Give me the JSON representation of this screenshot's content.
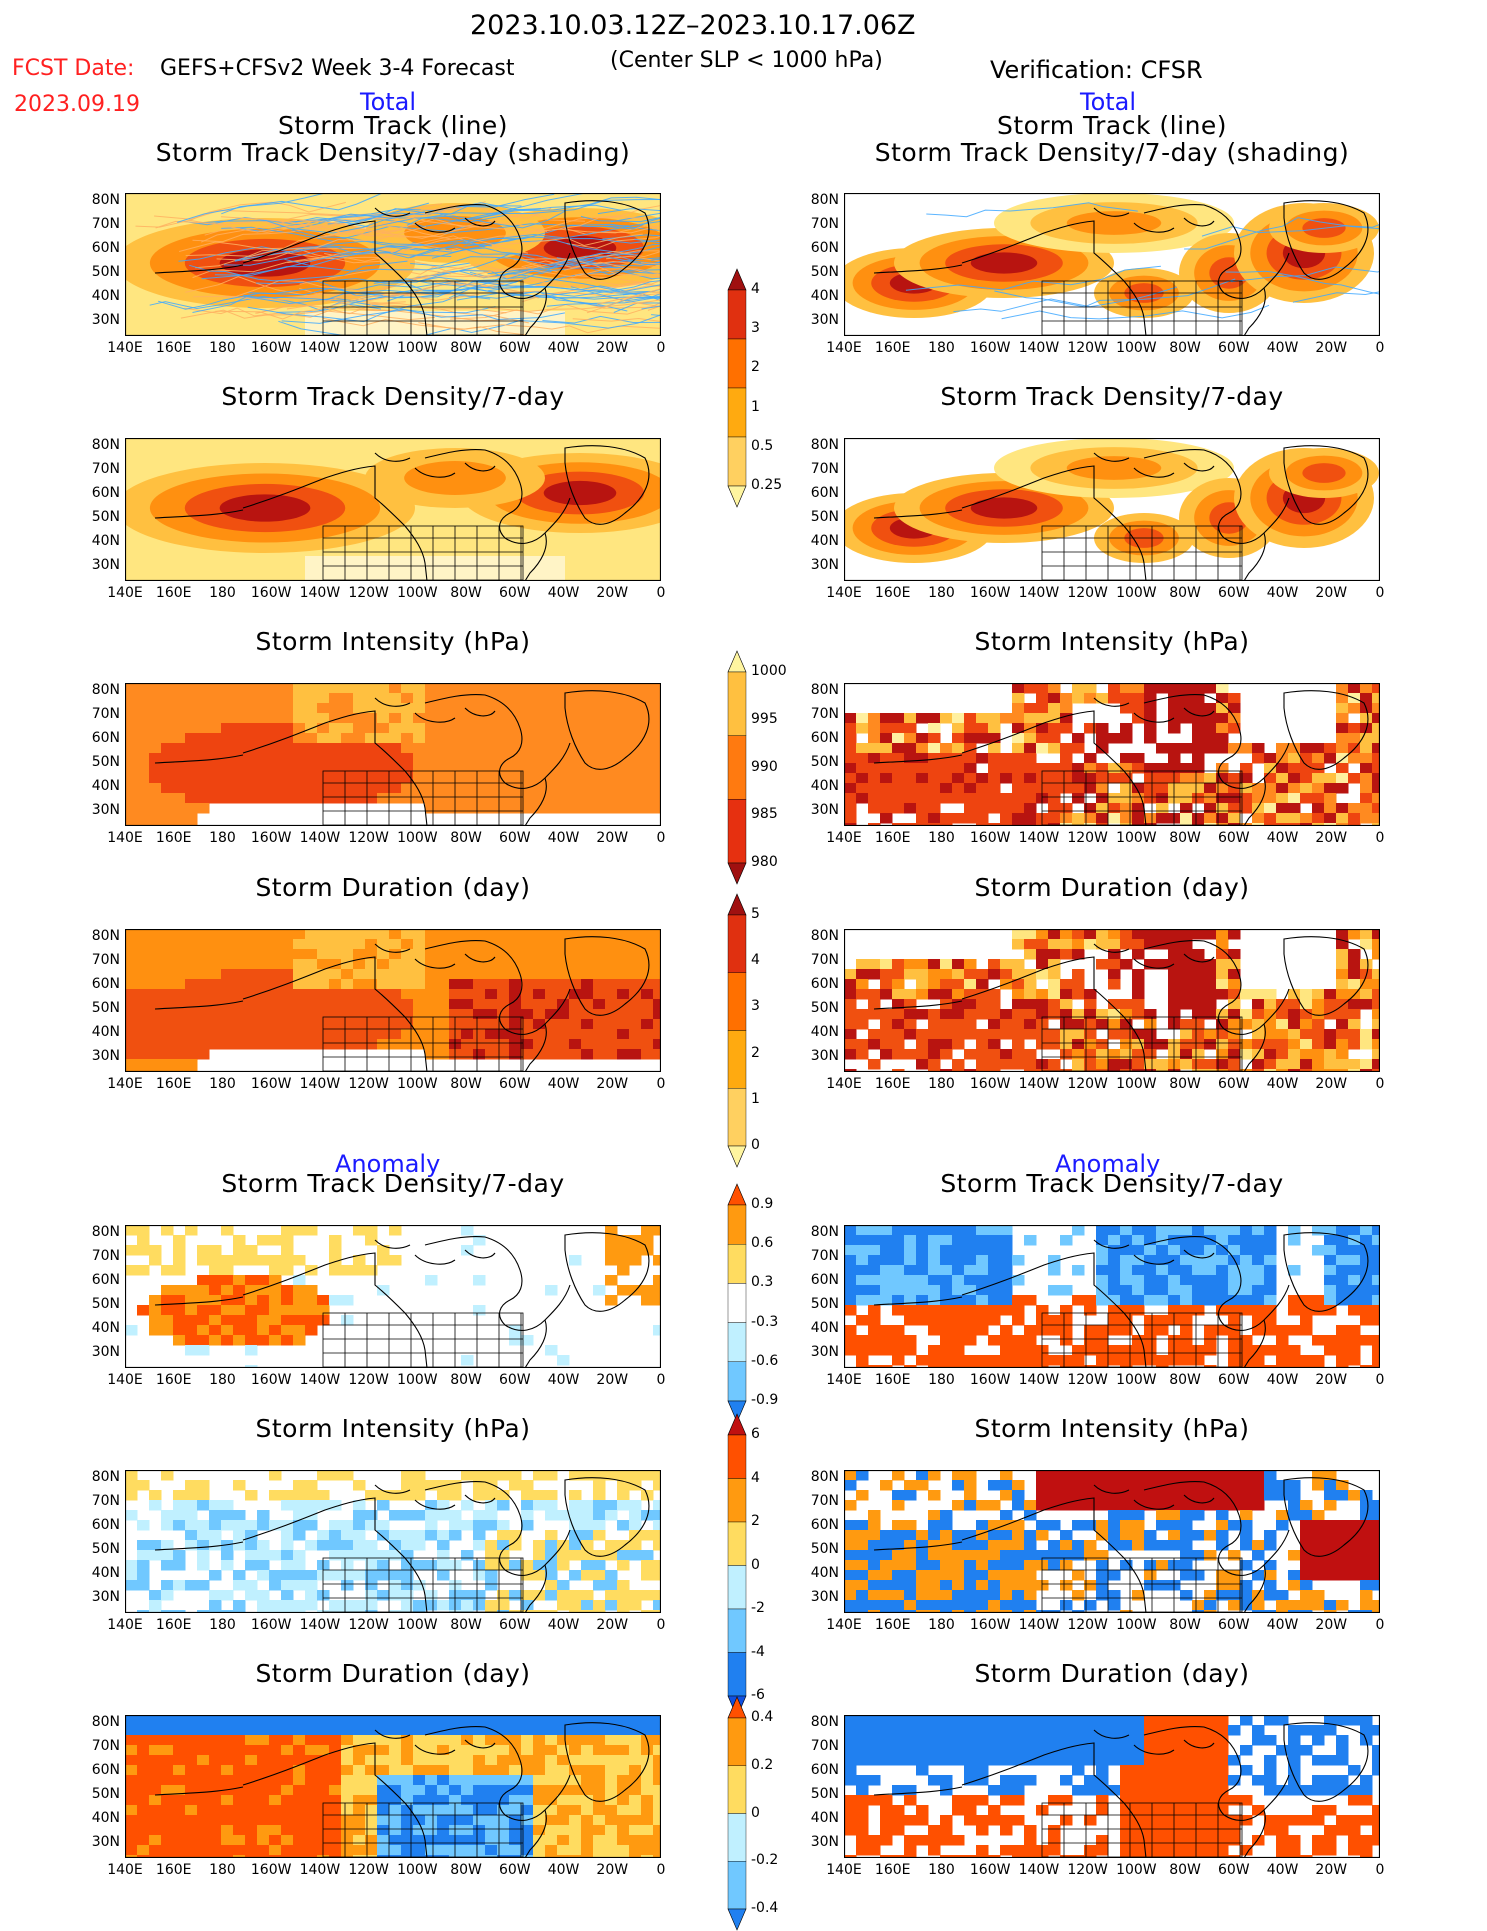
{
  "header": {
    "period": "2023.10.03.12Z–2023.10.17.06Z",
    "subtitle": "(Center SLP < 1000 hPa)",
    "fcst_label": "FCST Date:",
    "fcst_date": "2023.09.19",
    "model": "GEFS+CFSv2 Week 3-4 Forecast",
    "verification": "Verification: CFSR"
  },
  "sections": {
    "total_left": "Total",
    "total_right": "Total",
    "anomaly_left": "Anomaly",
    "anomaly_right": "Anomaly"
  },
  "titles": {
    "track_line": "Storm Track (line)",
    "track_density_shading": "Storm Track Density/7-day (shading)",
    "track_density": "Storm Track Density/7-day",
    "intensity": "Storm Intensity (hPa)",
    "duration": "Storm Duration (day)"
  },
  "axes": {
    "lat_labels": [
      "80N",
      "70N",
      "60N",
      "50N",
      "40N",
      "30N"
    ],
    "lon_labels": [
      "140E",
      "160E",
      "180",
      "160W",
      "140W",
      "120W",
      "100W",
      "80W",
      "60W",
      "40W",
      "20W",
      "0"
    ]
  },
  "colorbars": {
    "density": {
      "labels": [
        "4",
        "3",
        "2",
        "1",
        "0.5",
        "0.25"
      ],
      "colors": [
        "#a01010",
        "#e03010",
        "#ff7000",
        "#ffaa10",
        "#ffd060",
        "#fff5a0"
      ]
    },
    "intensity": {
      "labels": [
        "1000",
        "995",
        "990",
        "985",
        "980"
      ],
      "colors": [
        "#fff5a0",
        "#ffc040",
        "#ff7a10",
        "#e63010",
        "#a01010"
      ]
    },
    "duration": {
      "labels": [
        "5",
        "4",
        "3",
        "2",
        "1",
        "0"
      ],
      "colors": [
        "#a01010",
        "#e03010",
        "#ff7000",
        "#ffaa10",
        "#ffd060",
        "#fff5a0"
      ]
    },
    "anom_density": {
      "labels": [
        "0.9",
        "0.6",
        "0.3",
        "-0.3",
        "-0.6",
        "-0.9"
      ],
      "colors": [
        "#ff5000",
        "#ff9a10",
        "#ffdc60",
        "#ffffff",
        "#c0f0ff",
        "#70c8ff",
        "#2080f0"
      ]
    },
    "anom_intensity": {
      "labels": [
        "6",
        "4",
        "2",
        "0",
        "-2",
        "-4",
        "-6"
      ],
      "colors": [
        "#c01010",
        "#ff5000",
        "#ff9a10",
        "#ffdc60",
        "#c0f0ff",
        "#70c8ff",
        "#2080f0",
        "#1050e0"
      ]
    },
    "anom_duration": {
      "labels": [
        "0.4",
        "0.2",
        "0",
        "-0.2",
        "-0.4"
      ],
      "colors": [
        "#ff5000",
        "#ff9a10",
        "#ffdc60",
        "#c0f0ff",
        "#70c8ff",
        "#2080f0"
      ]
    }
  }
}
